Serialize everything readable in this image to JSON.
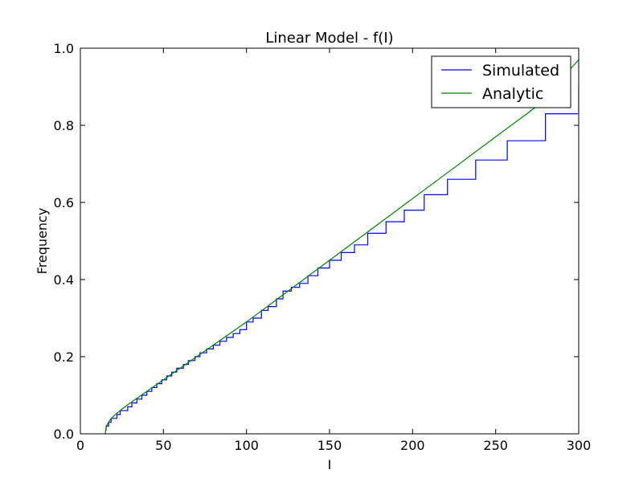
{
  "chart_data": {
    "type": "line",
    "title": "Linear Model - f(I)",
    "xlabel": "I",
    "ylabel": "Frequency",
    "xlim": [
      0,
      300
    ],
    "ylim": [
      0,
      1.0
    ],
    "xticks": [
      0,
      50,
      100,
      150,
      200,
      250,
      300
    ],
    "xtick_labels": [
      "0",
      "50",
      "100",
      "150",
      "200",
      "250",
      "300"
    ],
    "yticks": [
      0,
      0.2,
      0.4,
      0.6,
      0.8,
      1.0
    ],
    "ytick_labels": [
      "0.0",
      "0.2",
      "0.4",
      "0.6",
      "0.8",
      "1.0"
    ],
    "grid": false,
    "legend_position": "top-right",
    "series": [
      {
        "name": "Simulated",
        "color": "#0000ff",
        "style": "step",
        "x": [
          15,
          15.5,
          16,
          17,
          18.5,
          20,
          22,
          24,
          26,
          28.5,
          31,
          34,
          37,
          40,
          43,
          46,
          49,
          52,
          55,
          58,
          62,
          65,
          69,
          72,
          76,
          80,
          84,
          88,
          92,
          96,
          100,
          104,
          109,
          113,
          118,
          122,
          127,
          132,
          137,
          143,
          150,
          157,
          165,
          173,
          184,
          195,
          207,
          221,
          238,
          257,
          280,
          300
        ],
        "y": [
          0.01,
          0.02,
          0.02,
          0.03,
          0.04,
          0.04,
          0.05,
          0.06,
          0.06,
          0.07,
          0.08,
          0.09,
          0.1,
          0.11,
          0.12,
          0.13,
          0.14,
          0.15,
          0.16,
          0.17,
          0.18,
          0.19,
          0.2,
          0.21,
          0.22,
          0.23,
          0.24,
          0.25,
          0.26,
          0.27,
          0.29,
          0.3,
          0.32,
          0.33,
          0.35,
          0.37,
          0.38,
          0.39,
          0.41,
          0.43,
          0.45,
          0.47,
          0.49,
          0.52,
          0.55,
          0.58,
          0.62,
          0.66,
          0.71,
          0.76,
          0.83,
          0.9
        ]
      },
      {
        "name": "Analytic",
        "color": "#008000",
        "style": "line",
        "x": [
          15,
          15.5,
          16,
          18,
          20,
          25,
          30,
          40,
          50,
          60,
          80,
          100,
          125,
          150,
          175,
          200,
          225,
          250,
          275,
          300
        ],
        "y": [
          0.0,
          0.016,
          0.023,
          0.037,
          0.046,
          0.064,
          0.08,
          0.11,
          0.14,
          0.17,
          0.23,
          0.29,
          0.37,
          0.45,
          0.53,
          0.61,
          0.69,
          0.77,
          0.85,
          0.97
        ]
      }
    ]
  }
}
